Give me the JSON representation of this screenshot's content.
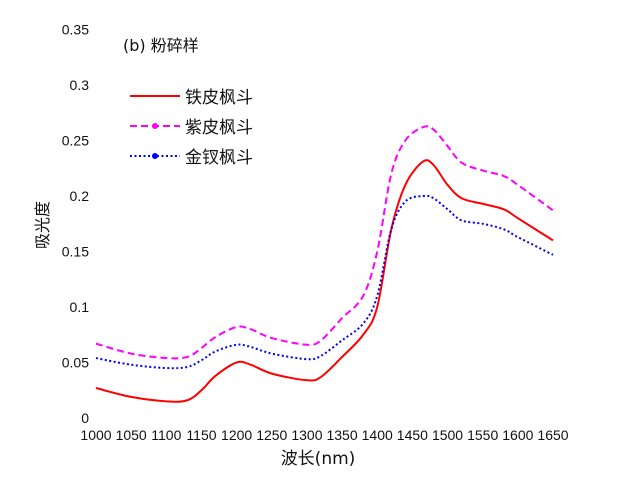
{
  "chart_data": {
    "type": "line",
    "title": "(b) 粉碎样",
    "xlabel": "波长(nm)",
    "ylabel": "吸光度",
    "xlim": [
      1000,
      1650
    ],
    "ylim": [
      0,
      0.35
    ],
    "xticks": [
      "1000",
      "1050",
      "1100",
      "1150",
      "1200",
      "1250",
      "1300",
      "1350",
      "1400",
      "1450",
      "1500",
      "1550",
      "1600",
      "1650"
    ],
    "yticks": [
      "0",
      "0.05",
      "0.1",
      "0.15",
      "0.2",
      "0.25",
      "0.3",
      "0.35"
    ],
    "grid": false,
    "legend_position": "top-left",
    "x": [
      1000,
      1050,
      1100,
      1130,
      1150,
      1170,
      1200,
      1220,
      1250,
      1300,
      1320,
      1350,
      1380,
      1400,
      1420,
      1440,
      1465,
      1480,
      1500,
      1520,
      1550,
      1580,
      1600,
      1650
    ],
    "series": [
      {
        "name": "铁皮枫斗",
        "color": "#ff0000",
        "style": "solid",
        "values": [
          0.027,
          0.019,
          0.015,
          0.016,
          0.025,
          0.038,
          0.05,
          0.048,
          0.04,
          0.034,
          0.037,
          0.055,
          0.075,
          0.1,
          0.17,
          0.21,
          0.231,
          0.228,
          0.21,
          0.198,
          0.193,
          0.188,
          0.18,
          0.16
        ]
      },
      {
        "name": "紫皮枫斗",
        "color": "#ff00ff",
        "style": "dashed",
        "values": [
          0.067,
          0.058,
          0.054,
          0.055,
          0.063,
          0.073,
          0.082,
          0.08,
          0.072,
          0.066,
          0.07,
          0.09,
          0.11,
          0.15,
          0.22,
          0.25,
          0.262,
          0.26,
          0.245,
          0.23,
          0.223,
          0.218,
          0.21,
          0.187
        ]
      },
      {
        "name": "金钗枫斗",
        "color": "#0000ff",
        "style": "dotted",
        "values": [
          0.054,
          0.048,
          0.045,
          0.046,
          0.052,
          0.06,
          0.066,
          0.064,
          0.058,
          0.053,
          0.056,
          0.07,
          0.085,
          0.11,
          0.17,
          0.195,
          0.2,
          0.198,
          0.188,
          0.178,
          0.175,
          0.17,
          0.163,
          0.147
        ]
      }
    ]
  }
}
